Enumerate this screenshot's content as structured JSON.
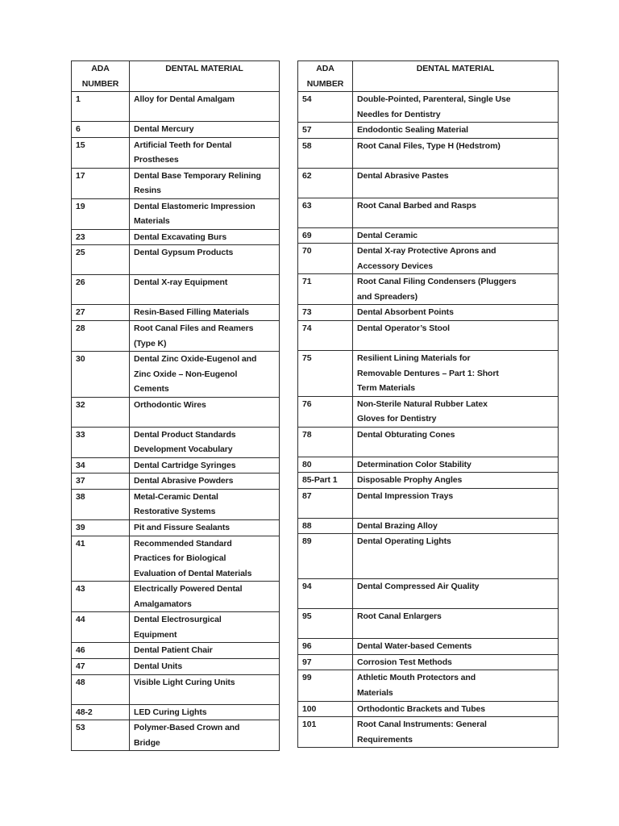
{
  "page": {
    "background": "#ffffff"
  },
  "table": {
    "text_color": "#1b1b1b",
    "border_color": "#2d2d2d",
    "headers": [
      "ADA\nNUMBER",
      "DENTAL MATERIAL",
      "ADA\nNUMBER",
      "DENTAL MATERIAL"
    ],
    "rows": [
      {
        "left_number": "1",
        "left_material": "Alloy for Dental Amalgam",
        "right_number": "54",
        "right_material": "Double-Pointed, Parenteral, Single Use\nNeedles for Dentistry"
      },
      {
        "left_number": "6",
        "left_material": "Dental Mercury",
        "right_number": "57",
        "right_material": "Endodontic Sealing Material"
      },
      {
        "left_number": "15",
        "left_material": "Artificial Teeth for Dental\nProstheses",
        "right_number": "58",
        "right_material": "Root Canal Files, Type H (Hedstrom)"
      },
      {
        "left_number": "17",
        "left_material": "Dental Base Temporary Relining\nResins",
        "right_number": "62",
        "right_material": "Dental Abrasive Pastes"
      },
      {
        "left_number": "19",
        "left_material": "Dental Elastomeric Impression\nMaterials",
        "right_number": "63",
        "right_material": "Root Canal Barbed and Rasps"
      },
      {
        "left_number": "23",
        "left_material": "Dental Excavating Burs",
        "right_number": "69",
        "right_material": "Dental Ceramic"
      },
      {
        "left_number": "25",
        "left_material": "Dental Gypsum Products",
        "right_number": "70",
        "right_material": "Dental X-ray Protective Aprons and\nAccessory Devices"
      },
      {
        "left_number": "26",
        "left_material": "Dental X-ray Equipment",
        "right_number": "71",
        "right_material": "Root Canal Filing Condensers (Pluggers\nand Spreaders)"
      },
      {
        "left_number": "27",
        "left_material": "Resin-Based Filling Materials",
        "right_number": "73",
        "right_material": "Dental Absorbent Points"
      },
      {
        "left_number": "28",
        "left_material": "Root Canal Files and Reamers\n(Type K)",
        "right_number": "74",
        "right_material": "Dental Operator’s Stool"
      },
      {
        "left_number": "30",
        "left_material": "Dental Zinc Oxide-Eugenol and\nZinc Oxide – Non-Eugenol\nCements",
        "right_number": "75",
        "right_material": "Resilient Lining Materials for\nRemovable Dentures – Part 1: Short\nTerm Materials"
      },
      {
        "left_number": "32",
        "left_material": "Orthodontic Wires",
        "right_number": "76",
        "right_material": "Non-Sterile Natural Rubber Latex\nGloves for Dentistry"
      },
      {
        "left_number": "33",
        "left_material": "Dental Product Standards\nDevelopment Vocabulary",
        "right_number": "78",
        "right_material": "Dental Obturating Cones"
      },
      {
        "left_number": "34",
        "left_material": "Dental Cartridge Syringes",
        "right_number": "80",
        "right_material": "Determination Color Stability"
      },
      {
        "left_number": "37",
        "left_material": "Dental Abrasive Powders",
        "right_number": "85-Part 1",
        "right_material": "Disposable Prophy Angles"
      },
      {
        "left_number": "38",
        "left_material": "Metal-Ceramic Dental\nRestorative Systems",
        "right_number": "87",
        "right_material": "Dental Impression Trays"
      },
      {
        "left_number": "39",
        "left_material": "Pit and Fissure Sealants",
        "right_number": "88",
        "right_material": "Dental Brazing Alloy"
      },
      {
        "left_number": "41",
        "left_material": "Recommended Standard\nPractices for Biological\nEvaluation of Dental Materials",
        "right_number": "89",
        "right_material": "Dental Operating Lights"
      },
      {
        "left_number": "43",
        "left_material": "Electrically Powered Dental\nAmalgamators",
        "right_number": "94",
        "right_material": "Dental Compressed Air Quality"
      },
      {
        "left_number": "44",
        "left_material": "Dental Electrosurgical\nEquipment",
        "right_number": "95",
        "right_material": "Root Canal Enlargers"
      },
      {
        "left_number": "46",
        "left_material": "Dental Patient Chair",
        "right_number": "96",
        "right_material": "Dental Water-based Cements"
      },
      {
        "left_number": "47",
        "left_material": "Dental Units",
        "right_number": "97",
        "right_material": "Corrosion Test Methods"
      },
      {
        "left_number": "48",
        "left_material": "Visible Light Curing Units",
        "right_number": "99",
        "right_material": "Athletic Mouth Protectors and\nMaterials"
      },
      {
        "left_number": "48-2",
        "left_material": "LED Curing Lights",
        "right_number": "100",
        "right_material": "Orthodontic Brackets and Tubes"
      },
      {
        "left_number": "53",
        "left_material": "Polymer-Based Crown and\nBridge",
        "right_number": "101",
        "right_material": "Root Canal Instruments: General\nRequirements"
      }
    ]
  }
}
